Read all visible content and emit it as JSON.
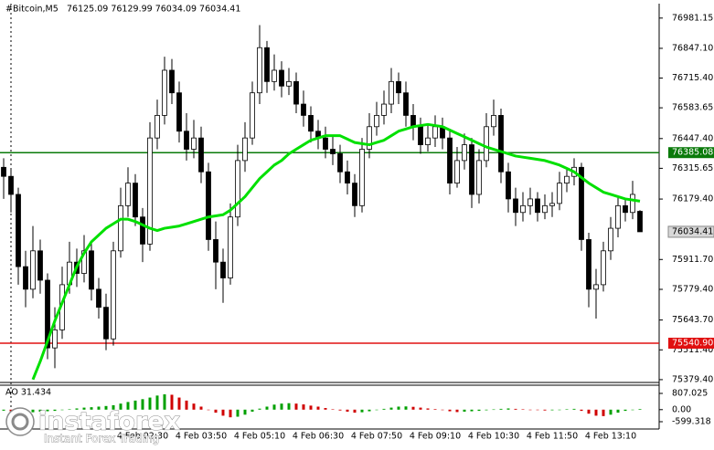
{
  "chart_data": {
    "type": "candlestick",
    "title": "#Bitcoin,M5",
    "ohlc_label": "76125.09 76129.99 76034.09 76034.41",
    "categories": [
      null,
      null,
      null,
      null,
      null,
      null,
      null,
      null,
      null,
      null,
      null,
      null,
      null,
      null,
      null,
      null,
      null,
      null,
      null,
      "4 Feb 02:30",
      null,
      null,
      null,
      null,
      null,
      null,
      null,
      "4 Feb 03:50",
      null,
      null,
      null,
      null,
      null,
      null,
      null,
      "4 Feb 05:10",
      null,
      null,
      null,
      null,
      null,
      null,
      null,
      "4 Feb 06:30",
      null,
      null,
      null,
      null,
      null,
      null,
      null,
      "4 Feb 07:50",
      null,
      null,
      null,
      null,
      null,
      null,
      null,
      "4 Feb 09:10",
      null,
      null,
      null,
      null,
      null,
      null,
      null,
      "4 Feb 10:30",
      null,
      null,
      null,
      null,
      null,
      null,
      null,
      "4 Feb 11:50",
      null,
      null,
      null,
      null,
      null,
      null,
      null,
      "4 Feb 13:10",
      null,
      null,
      null,
      null
    ],
    "open": [
      76320,
      76280,
      76200,
      75880,
      75780,
      75950,
      75820,
      75520,
      75600,
      75800,
      75900,
      75850,
      75950,
      75780,
      75700,
      75560,
      75950,
      76150,
      76250,
      76100,
      75980,
      76450,
      76550,
      76750,
      76650,
      76480,
      76400,
      76450,
      76300,
      76000,
      75900,
      75830,
      76100,
      76350,
      76450,
      76650,
      76850,
      76700,
      76750,
      76680,
      76700,
      76600,
      76550,
      76480,
      76450,
      76400,
      76380,
      76300,
      76250,
      76150,
      76400,
      76500,
      76550,
      76600,
      76700,
      76650,
      76550,
      76500,
      76420,
      76450,
      76500,
      76450,
      76250,
      76350,
      76420,
      76200,
      76350,
      76500,
      76550,
      76300,
      76180,
      76120,
      76150,
      76180,
      76120,
      76150,
      76160,
      76250,
      76280,
      76320,
      76000,
      75780,
      75800,
      75950,
      76050,
      76150,
      76120,
      76125.09
    ],
    "high": [
      76360,
      76310,
      76230,
      75950,
      76060,
      76000,
      75850,
      75700,
      75880,
      75990,
      75960,
      76020,
      75990,
      75830,
      75760,
      75990,
      76230,
      76320,
      76290,
      76140,
      76520,
      76620,
      76810,
      76800,
      76700,
      76560,
      76530,
      76500,
      76340,
      76080,
      75960,
      76160,
      76420,
      76520,
      76700,
      76950,
      76880,
      76820,
      76790,
      76760,
      76740,
      76660,
      76590,
      76530,
      76500,
      76460,
      76420,
      76350,
      76290,
      76450,
      76560,
      76610,
      76660,
      76760,
      76740,
      76700,
      76600,
      76540,
      76510,
      76550,
      76540,
      76480,
      76410,
      76470,
      76450,
      76400,
      76560,
      76620,
      76580,
      76340,
      76230,
      76210,
      76230,
      76210,
      76200,
      76210,
      76300,
      76320,
      76360,
      76340,
      76030,
      75870,
      75990,
      76100,
      76190,
      76180,
      76260,
      76129.99
    ],
    "low": [
      76180,
      76120,
      75800,
      75700,
      75740,
      75760,
      75470,
      75430,
      75560,
      75760,
      75790,
      75810,
      75730,
      75650,
      75510,
      75530,
      75920,
      76100,
      76060,
      75900,
      75950,
      76400,
      76510,
      76600,
      76430,
      76350,
      76360,
      76250,
      75950,
      75780,
      75720,
      75800,
      76060,
      76300,
      76420,
      76600,
      76650,
      76660,
      76630,
      76640,
      76560,
      76500,
      76430,
      76400,
      76360,
      76330,
      76250,
      76200,
      76100,
      76120,
      76360,
      76460,
      76510,
      76560,
      76600,
      76500,
      76440,
      76380,
      76390,
      76410,
      76400,
      76200,
      76230,
      76310,
      76140,
      76160,
      76320,
      76460,
      76250,
      76120,
      76060,
      76080,
      76110,
      76080,
      76090,
      76100,
      76130,
      76210,
      76240,
      75950,
      75700,
      75650,
      75770,
      75910,
      76010,
      76080,
      76090,
      76034.09
    ],
    "close": [
      76280,
      76200,
      75880,
      75780,
      75950,
      75820,
      75520,
      75600,
      75800,
      75900,
      75850,
      75950,
      75780,
      75700,
      75560,
      75950,
      76150,
      76250,
      76100,
      75980,
      76450,
      76550,
      76750,
      76650,
      76480,
      76400,
      76450,
      76300,
      76000,
      75900,
      75830,
      76100,
      76350,
      76450,
      76650,
      76850,
      76700,
      76750,
      76680,
      76700,
      76600,
      76550,
      76480,
      76450,
      76400,
      76380,
      76300,
      76250,
      76150,
      76400,
      76500,
      76550,
      76600,
      76700,
      76650,
      76550,
      76500,
      76420,
      76450,
      76500,
      76450,
      76250,
      76350,
      76420,
      76200,
      76350,
      76500,
      76550,
      76300,
      76180,
      76120,
      76150,
      76180,
      76120,
      76150,
      76160,
      76250,
      76280,
      76320,
      76000,
      75780,
      75800,
      75950,
      76050,
      76150,
      76120,
      76200,
      76034.41
    ],
    "bull_color": "#ffffff",
    "bear_color": "#000000",
    "ylim": [
      75371,
      77041
    ],
    "yticks": [
      76981.15,
      {
        "value": 76847.1,
        "label": "76847.10"
      },
      {
        "value": 76715.4,
        "label": "76715.40"
      },
      76583.65,
      {
        "value": 76447.4,
        "label": "76447.40"
      },
      76315.65,
      {
        "value": 76179.4,
        "label": "76179.40"
      },
      {
        "value": 75911.7,
        "label": "75911.70"
      },
      {
        "value": 75779.4,
        "label": "75779.40"
      },
      {
        "value": 75643.7,
        "label": "75643.70"
      },
      {
        "value": 75511.4,
        "label": "75511.40"
      },
      {
        "value": 75379.4,
        "label": "75379.40"
      }
    ],
    "ma": {
      "color": "#00e000",
      "values": [
        null,
        null,
        null,
        null,
        75380,
        75460,
        75550,
        75640,
        75720,
        75800,
        75880,
        75940,
        75990,
        76020,
        76050,
        76070,
        76090,
        76090,
        76080,
        76065,
        76050,
        76040,
        76050,
        76055,
        76060,
        76070,
        76080,
        76090,
        76100,
        76105,
        76110,
        76130,
        76160,
        76190,
        76230,
        76270,
        76300,
        76330,
        76350,
        76380,
        76400,
        76420,
        76440,
        76450,
        76460,
        76460,
        76460,
        76445,
        76430,
        76425,
        76420,
        76430,
        76440,
        76460,
        76480,
        76490,
        76500,
        76505,
        76510,
        76505,
        76500,
        76485,
        76470,
        76455,
        76440,
        76425,
        76410,
        76400,
        76390,
        76380,
        76370,
        76365,
        76360,
        76355,
        76350,
        76340,
        76330,
        76315,
        76300,
        76275,
        76250,
        76230,
        76210,
        76200,
        76190,
        76180,
        76175,
        76170
      ]
    },
    "levels": [
      {
        "value": 76385.08,
        "label": "76385.08",
        "color": "#0a7a0a"
      },
      {
        "value": 75540.9,
        "label": "75540.90",
        "color": "#e01010"
      }
    ],
    "indicator": {
      "type": "bar",
      "label": "AO 31.434",
      "values": [
        -50,
        -80,
        -120,
        -150,
        -130,
        -100,
        -80,
        -60,
        -20,
        20,
        60,
        100,
        120,
        150,
        180,
        220,
        300,
        380,
        450,
        520,
        600,
        700,
        760,
        740,
        600,
        450,
        300,
        150,
        0,
        -150,
        -300,
        -380,
        -350,
        -250,
        -100,
        50,
        150,
        250,
        300,
        320,
        300,
        260,
        200,
        150,
        80,
        20,
        -40,
        -100,
        -150,
        -130,
        -80,
        -20,
        40,
        100,
        150,
        160,
        140,
        100,
        60,
        30,
        -20,
        -80,
        -120,
        -100,
        -80,
        -60,
        -30,
        10,
        40,
        60,
        40,
        20,
        0,
        -20,
        -40,
        -30,
        -10,
        20,
        40,
        -60,
        -200,
        -300,
        -320,
        -250,
        -150,
        -60,
        0,
        31.434
      ],
      "up_color": "#00a000",
      "down_color": "#d00000",
      "ylim": [
        -962,
        1215
      ],
      "yticks": [
        807.025,
        {
          "value": 0,
          "label": "0.00"
        },
        -599.318
      ]
    }
  },
  "watermark": {
    "brand": "instaforex",
    "tagline": "Instant Forex Trading"
  }
}
